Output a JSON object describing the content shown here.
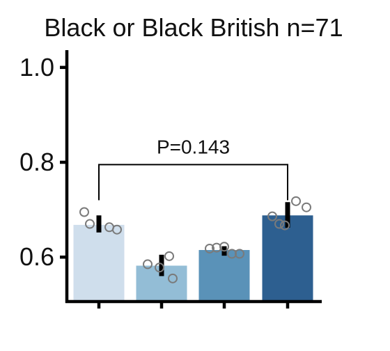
{
  "chart_data": {
    "type": "bar",
    "title": "Black or Black British n=71",
    "xlabel": "",
    "ylabel": "",
    "ylim": [
      0.5,
      1.04
    ],
    "yticks": [
      0.6,
      0.8,
      1.0
    ],
    "ytick_labels": [
      "0.6",
      "0.8",
      "1.0"
    ],
    "categories": [
      "",
      "",
      "",
      ""
    ],
    "values": [
      0.668,
      0.582,
      0.615,
      0.688
    ],
    "errors": [
      [
        0.652,
        0.688
      ],
      [
        0.56,
        0.605
      ],
      [
        0.603,
        0.623
      ],
      [
        0.662,
        0.716
      ]
    ],
    "points": [
      [
        0.695,
        0.67,
        0.663,
        0.658
      ],
      [
        0.585,
        0.578,
        0.602,
        0.555
      ],
      [
        0.618,
        0.62,
        0.622,
        0.607,
        0.607
      ],
      [
        0.686,
        0.67,
        0.667,
        0.718,
        0.705
      ]
    ],
    "colors": [
      "#cfdeec",
      "#93bdd6",
      "#5a92b8",
      "#2d5f90"
    ],
    "annotation": {
      "text": "P=0.143",
      "from": 0,
      "to": 3,
      "y": 0.795,
      "drop_to": 0.72
    },
    "grid": false,
    "legend": "none"
  }
}
